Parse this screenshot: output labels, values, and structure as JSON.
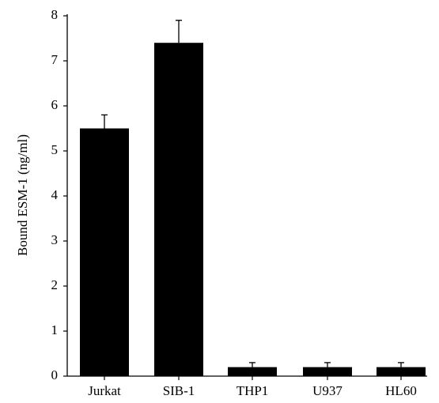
{
  "chart_data": {
    "type": "bar",
    "title": "",
    "xlabel": "",
    "ylabel": "Bound ESM-1 (ng/ml)",
    "categories": [
      "Jurkat",
      "SIB-1",
      "THP1",
      "U937",
      "HL60"
    ],
    "values": [
      5.5,
      7.4,
      0.2,
      0.2,
      0.2
    ],
    "error_upper": [
      0.3,
      0.5,
      0.1,
      0.1,
      0.1
    ],
    "ylim": [
      0,
      8
    ],
    "yticks": [
      "0",
      "1",
      "2",
      "3",
      "4",
      "5",
      "6",
      "7",
      "8"
    ],
    "grid": false,
    "bar_color": "#000000"
  }
}
